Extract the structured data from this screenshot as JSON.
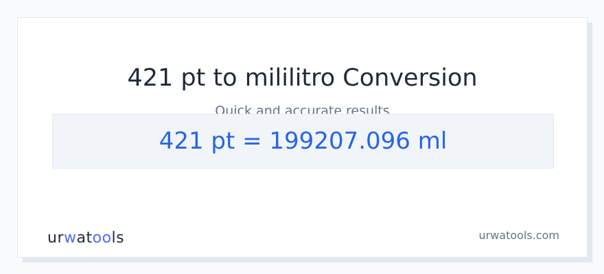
{
  "title": "421 pt to mililitro Conversion",
  "subtitle": "Quick and accurate results",
  "result": "421 pt = 199207.096 ml",
  "logo": {
    "text": "urwatools",
    "parts": [
      "ur",
      "w",
      "at",
      "oo",
      "ls"
    ]
  },
  "site": "urwatools.com",
  "colors": {
    "accent": "#2563eb",
    "logo_accent": "#4a6cf7"
  }
}
